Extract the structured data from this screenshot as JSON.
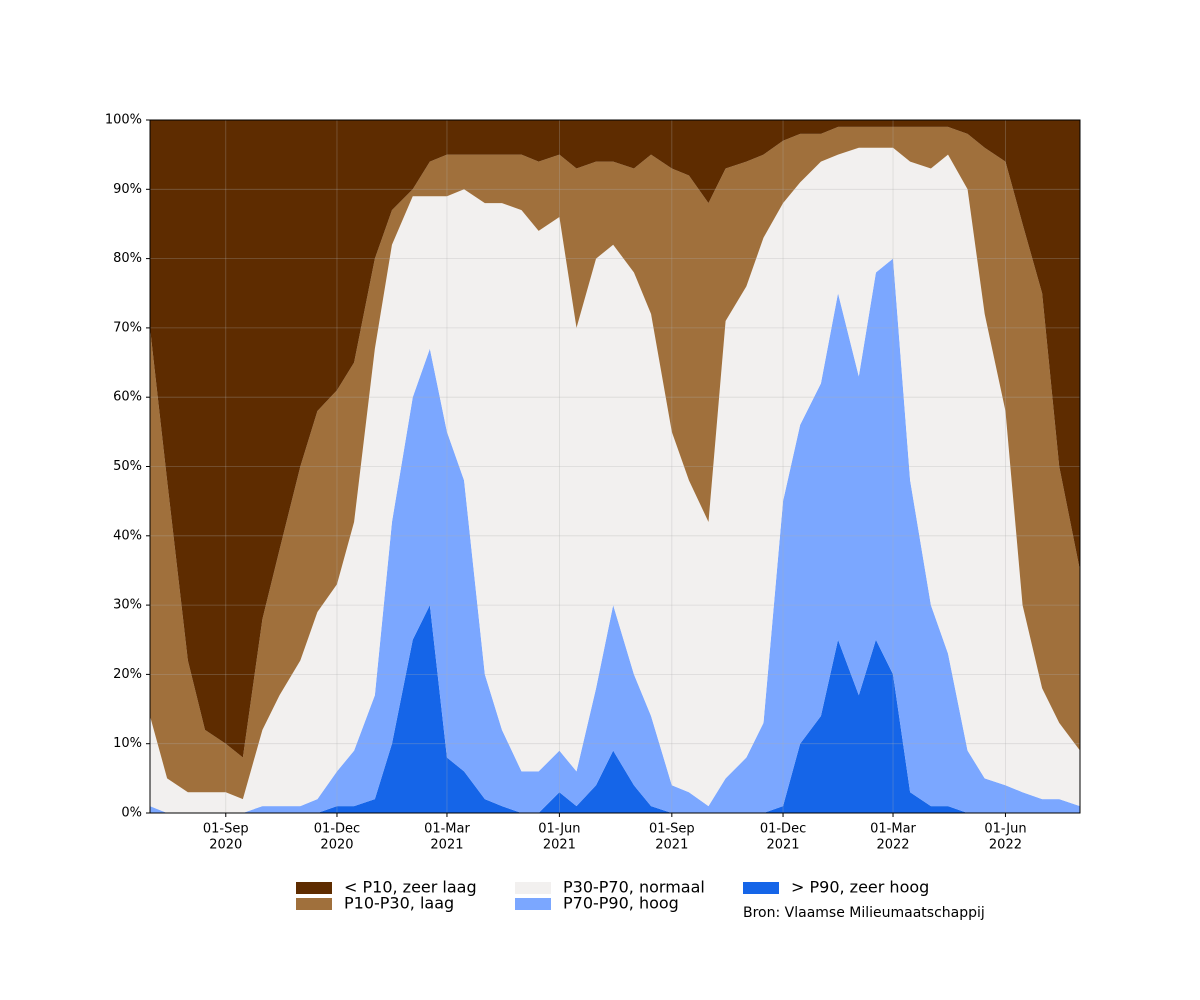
{
  "chart_data": {
    "type": "stacked-area",
    "x": [
      "2020-07-01",
      "2020-07-15",
      "2020-08-01",
      "2020-08-15",
      "2020-09-01",
      "2020-09-15",
      "2020-10-01",
      "2020-10-15",
      "2020-11-01",
      "2020-11-15",
      "2020-12-01",
      "2020-12-15",
      "2021-01-01",
      "2021-01-15",
      "2021-02-01",
      "2021-02-15",
      "2021-03-01",
      "2021-03-15",
      "2021-04-01",
      "2021-04-15",
      "2021-05-01",
      "2021-05-15",
      "2021-06-01",
      "2021-06-15",
      "2021-07-01",
      "2021-07-15",
      "2021-08-01",
      "2021-08-15",
      "2021-09-01",
      "2021-09-15",
      "2021-10-01",
      "2021-10-15",
      "2021-11-01",
      "2021-11-15",
      "2021-12-01",
      "2021-12-15",
      "2022-01-01",
      "2022-01-15",
      "2022-02-01",
      "2022-02-15",
      "2022-03-01",
      "2022-03-15",
      "2022-04-01",
      "2022-04-15",
      "2022-05-01",
      "2022-05-15",
      "2022-06-01",
      "2022-06-15",
      "2022-07-01",
      "2022-07-15",
      "2022-08-01"
    ],
    "series": [
      {
        "name": "< P10, zeer laag",
        "color": "#5e2c00",
        "values": [
          30,
          52,
          78,
          88,
          90,
          92,
          72,
          62,
          50,
          42,
          39,
          35,
          20,
          13,
          10,
          6,
          5,
          5,
          5,
          5,
          5,
          6,
          5,
          7,
          6,
          6,
          7,
          5,
          7,
          8,
          12,
          7,
          6,
          5,
          3,
          2,
          2,
          1,
          1,
          1,
          1,
          1,
          1,
          1,
          2,
          4,
          6,
          15,
          25,
          50,
          65
        ]
      },
      {
        "name": "P10-P30, laag",
        "color": "#a0703c",
        "values": [
          56,
          43,
          19,
          9,
          7,
          6,
          16,
          21,
          28,
          29,
          28,
          23,
          13,
          5,
          1,
          5,
          6,
          5,
          7,
          7,
          8,
          10,
          9,
          23,
          14,
          12,
          15,
          23,
          38,
          44,
          46,
          22,
          18,
          12,
          9,
          7,
          4,
          4,
          3,
          3,
          3,
          5,
          6,
          4,
          8,
          24,
          36,
          55,
          57,
          37,
          26
        ]
      },
      {
        "name": "P30-P70, normaal",
        "color": "#f2f0ef",
        "values": [
          13,
          5,
          3,
          3,
          3,
          2,
          11,
          16,
          21,
          27,
          27,
          33,
          50,
          40,
          29,
          22,
          34,
          42,
          68,
          76,
          81,
          78,
          77,
          64,
          62,
          52,
          58,
          58,
          51,
          45,
          41,
          66,
          68,
          70,
          43,
          35,
          32,
          20,
          33,
          18,
          16,
          46,
          63,
          72,
          81,
          67,
          54,
          27,
          16,
          11,
          8
        ]
      },
      {
        "name": "P70-P90, hoog",
        "color": "#7ba7ff",
        "values": [
          1,
          0,
          0,
          0,
          0,
          0,
          1,
          1,
          1,
          2,
          5,
          8,
          15,
          32,
          35,
          37,
          47,
          42,
          18,
          11,
          6,
          6,
          6,
          5,
          14,
          21,
          16,
          13,
          4,
          3,
          1,
          5,
          8,
          13,
          44,
          46,
          48,
          50,
          46,
          53,
          60,
          45,
          29,
          22,
          9,
          5,
          4,
          3,
          2,
          2,
          1
        ]
      },
      {
        "name": "> P90, zeer hoog",
        "color": "#1565e8",
        "values": [
          0,
          0,
          0,
          0,
          0,
          0,
          0,
          0,
          0,
          0,
          1,
          1,
          2,
          10,
          25,
          30,
          8,
          6,
          2,
          1,
          0,
          0,
          3,
          1,
          4,
          9,
          4,
          1,
          0,
          0,
          0,
          0,
          0,
          0,
          1,
          10,
          14,
          25,
          17,
          25,
          20,
          3,
          1,
          1,
          0,
          0,
          0,
          0,
          0,
          0,
          0
        ]
      }
    ],
    "xlim": [
      "2020-07-01",
      "2022-08-01"
    ],
    "xticks": [
      {
        "value": "2020-09-01",
        "label": [
          "01-Sep",
          "2020"
        ]
      },
      {
        "value": "2020-12-01",
        "label": [
          "01-Dec",
          "2020"
        ]
      },
      {
        "value": "2021-03-01",
        "label": [
          "01-Mar",
          "2021"
        ]
      },
      {
        "value": "2021-06-01",
        "label": [
          "01-Jun",
          "2021"
        ]
      },
      {
        "value": "2021-09-01",
        "label": [
          "01-Sep",
          "2021"
        ]
      },
      {
        "value": "2021-12-01",
        "label": [
          "01-Dec",
          "2021"
        ]
      },
      {
        "value": "2022-03-01",
        "label": [
          "01-Mar",
          "2022"
        ]
      },
      {
        "value": "2022-06-01",
        "label": [
          "01-Jun",
          "2022"
        ]
      }
    ],
    "ylim": [
      0,
      100
    ],
    "yticks": [
      {
        "value": 0,
        "label": "0%"
      },
      {
        "value": 10,
        "label": "10%"
      },
      {
        "value": 20,
        "label": "20%"
      },
      {
        "value": 30,
        "label": "30%"
      },
      {
        "value": 40,
        "label": "40%"
      },
      {
        "value": 50,
        "label": "50%"
      },
      {
        "value": 60,
        "label": "60%"
      },
      {
        "value": 70,
        "label": "70%"
      },
      {
        "value": 80,
        "label": "80%"
      },
      {
        "value": 90,
        "label": "90%"
      },
      {
        "value": 100,
        "label": "100%"
      }
    ],
    "grid": true,
    "source": "Bron: Vlaamse Milieumaatschappij"
  }
}
